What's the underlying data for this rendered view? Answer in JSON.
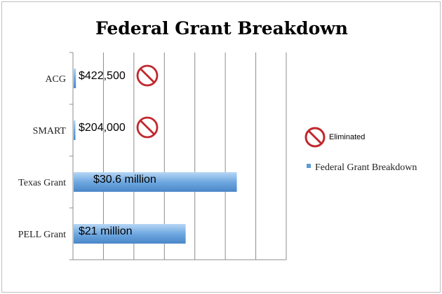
{
  "chart_data": {
    "type": "bar",
    "orientation": "horizontal",
    "title": "Federal Grant Breakdown",
    "xlabel": "",
    "ylabel": "",
    "categories": [
      "ACG",
      "SMART",
      "Texas Grant",
      "PELL Grant"
    ],
    "series": [
      {
        "name": "Federal Grant Breakdown",
        "values": [
          422500,
          204000,
          30600000,
          21000000
        ],
        "color": "#5b9bd5"
      }
    ],
    "data_labels": [
      "$422,500",
      "$204,000",
      "$30.6 million",
      "$21 million"
    ],
    "eliminated": [
      true,
      true,
      false,
      false
    ],
    "xlim": [
      0,
      40000000
    ],
    "grid": true,
    "legend": {
      "placement": "right",
      "entries": [
        {
          "label": "Eliminated",
          "icon": "prohibited-icon"
        },
        {
          "label": "Federal Grant Breakdown",
          "icon": "series-swatch"
        }
      ]
    },
    "colors": {
      "bar": "#5b9bd5",
      "bar_light": "#a9cdf0",
      "prohibit": "#c0282d",
      "grid": "#8c8c8c"
    }
  }
}
